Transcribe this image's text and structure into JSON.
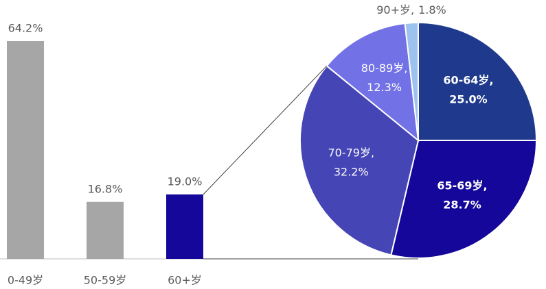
{
  "chart_data": [
    {
      "type": "bar",
      "categories": [
        "0-49岁",
        "50-59岁",
        "60+岁"
      ],
      "values": [
        64.2,
        16.8,
        19.0
      ],
      "value_labels": [
        "64.2%",
        "16.8%",
        "19.0%"
      ],
      "colors": [
        "#a6a6a6",
        "#a6a6a6",
        "#15079a"
      ]
    },
    {
      "type": "pie",
      "categories": [
        "60-64岁,",
        "65-69岁,",
        "70-79岁,",
        "80-89岁,",
        "90+岁,"
      ],
      "values": [
        25.0,
        28.7,
        32.2,
        12.3,
        1.8
      ],
      "value_labels": [
        "25.0%",
        "28.7%",
        "32.2%",
        "12.3%",
        "1.8%"
      ],
      "colors": [
        "#1f3a8c",
        "#15079a",
        "#4545b5",
        "#7272e6",
        "#9cc3ee"
      ]
    }
  ]
}
